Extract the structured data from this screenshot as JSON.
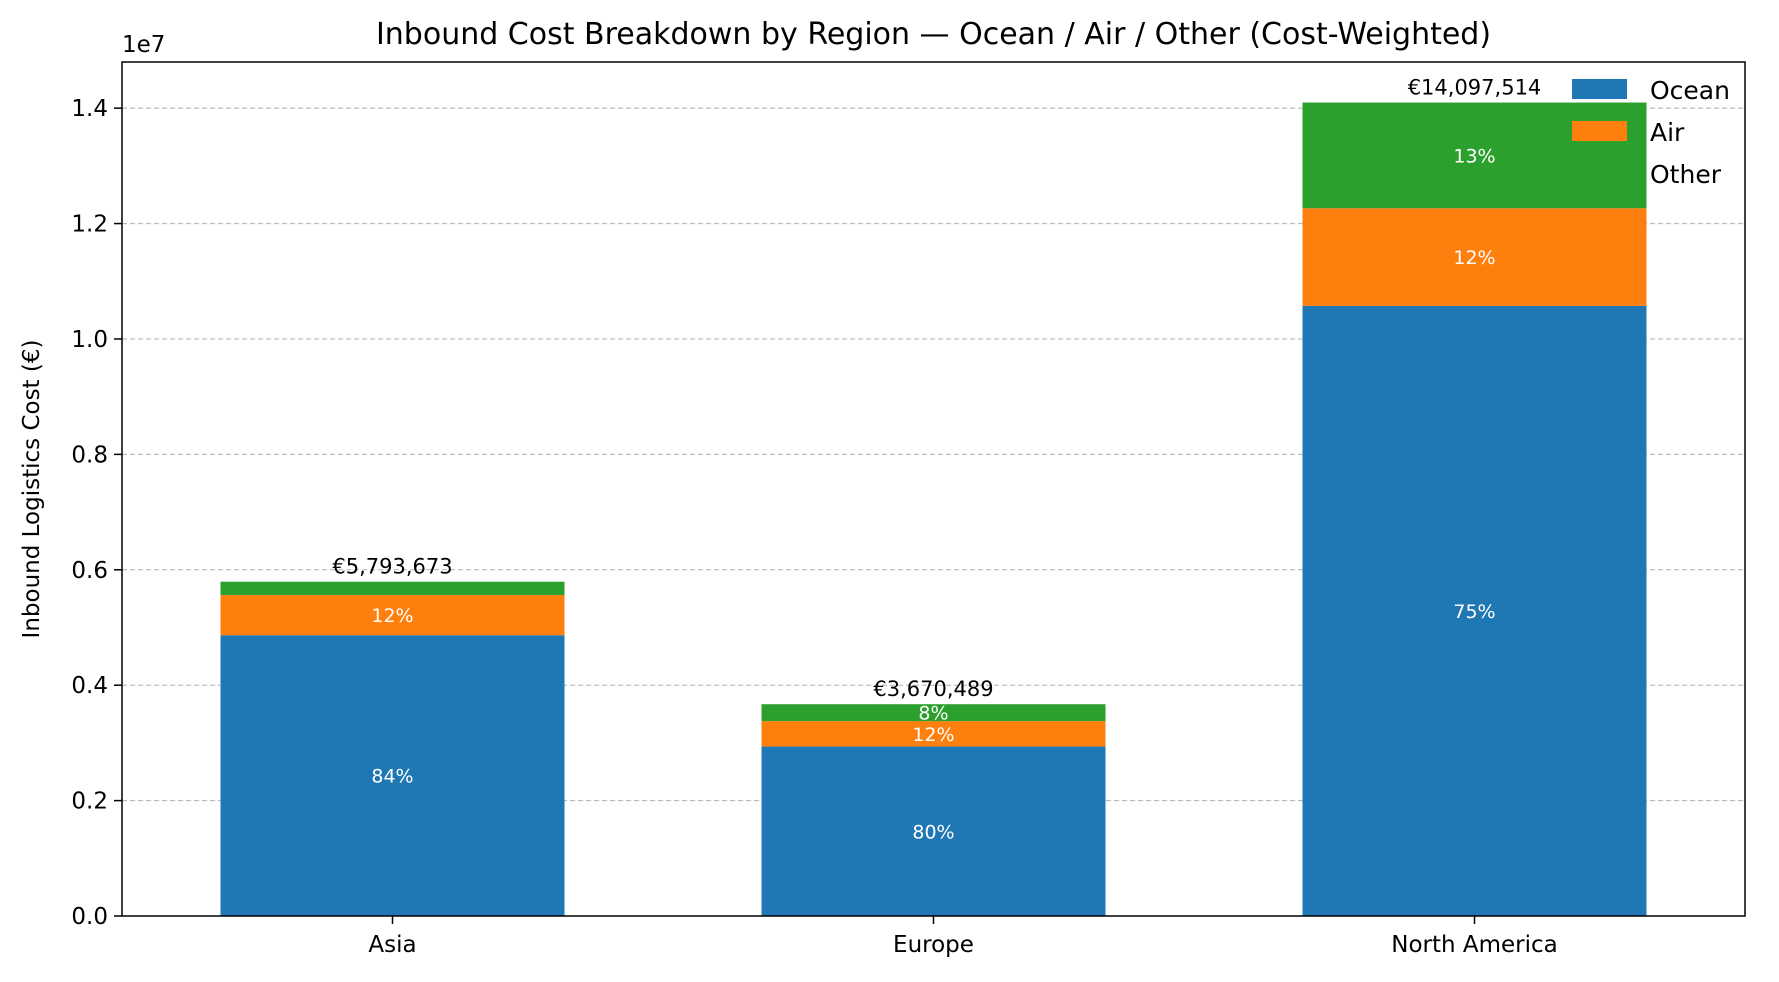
{
  "chart_data": {
    "type": "bar",
    "stacked": true,
    "title": "Inbound Cost Breakdown by Region — Ocean / Air / Other (Cost-Weighted)",
    "xlabel": "",
    "ylabel": "Inbound Logistics Cost (€)",
    "y_scale_exponent": "1e7",
    "ylim": [
      0,
      14800000
    ],
    "yticks": [
      0,
      2000000,
      4000000,
      6000000,
      8000000,
      10000000,
      12000000,
      14000000
    ],
    "ytick_labels": [
      "0.0",
      "0.2",
      "0.4",
      "0.6",
      "0.8",
      "1.0",
      "1.2",
      "1.4"
    ],
    "grid": "horizontal-dashed",
    "legend_placement": "top-right",
    "categories": [
      "Asia",
      "Europe",
      "North America"
    ],
    "series": [
      {
        "name": "Ocean",
        "color": "#1f77b4",
        "values": [
          4866685,
          2936391,
          10573136
        ],
        "labels": [
          "84%",
          "80%",
          "75%"
        ]
      },
      {
        "name": "Air",
        "color": "#ff7f0e",
        "values": [
          695241,
          440459,
          1691702
        ],
        "labels": [
          "12%",
          "12%",
          "12%"
        ]
      },
      {
        "name": "Other",
        "color": "#2ca02c",
        "values": [
          231747,
          293639,
          1832676
        ],
        "labels": [
          "",
          "8%",
          "13%"
        ]
      }
    ],
    "totals": [
      5793673,
      3670489,
      14097514
    ],
    "total_labels": [
      "€5,793,673",
      "€3,670,489",
      "€14,097,514"
    ]
  }
}
